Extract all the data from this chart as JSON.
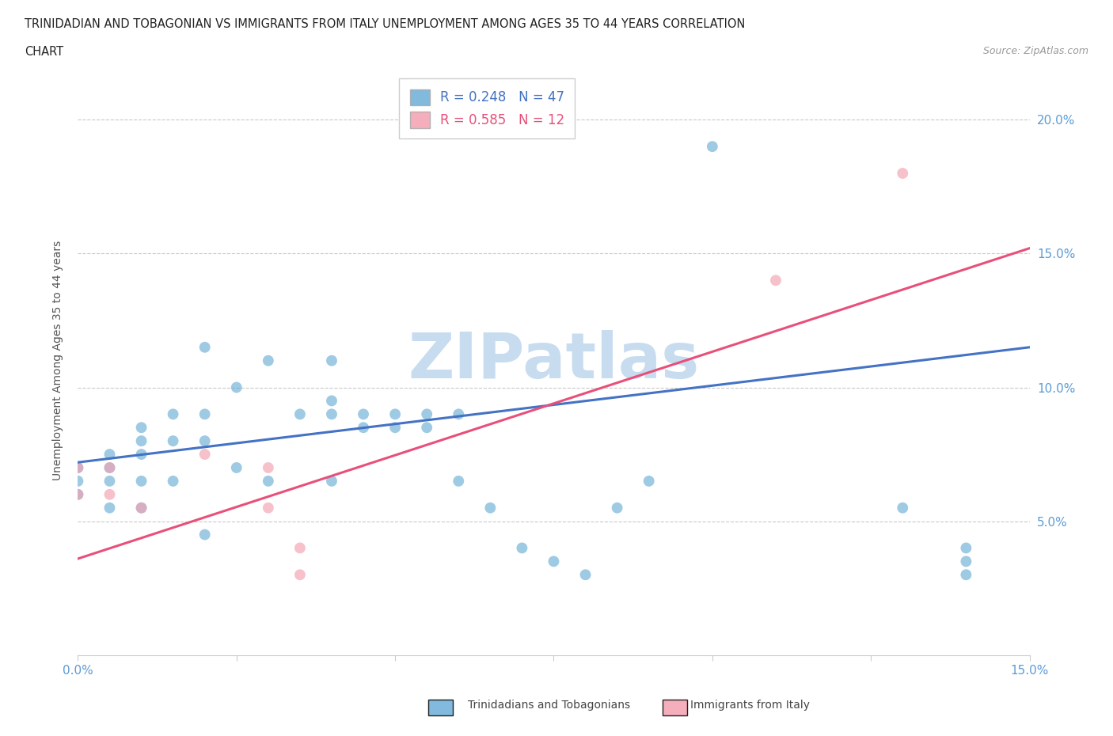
{
  "title_line1": "TRINIDADIAN AND TOBAGONIAN VS IMMIGRANTS FROM ITALY UNEMPLOYMENT AMONG AGES 35 TO 44 YEARS CORRELATION",
  "title_line2": "CHART",
  "source": "Source: ZipAtlas.com",
  "ylabel": "Unemployment Among Ages 35 to 44 years",
  "xlim": [
    0.0,
    0.15
  ],
  "ylim": [
    0.0,
    0.22
  ],
  "yticks": [
    0.05,
    0.1,
    0.15,
    0.2
  ],
  "ytick_labels": [
    "5.0%",
    "10.0%",
    "15.0%",
    "20.0%"
  ],
  "xticks": [
    0.0,
    0.025,
    0.05,
    0.075,
    0.1,
    0.125,
    0.15
  ],
  "xtick_labels": [
    "0.0%",
    "",
    "",
    "",
    "",
    "",
    "15.0%"
  ],
  "legend1_R": "0.248",
  "legend1_N": "47",
  "legend2_R": "0.585",
  "legend2_N": "12",
  "blue_color": "#6BAED6",
  "pink_color": "#F4A0B0",
  "blue_line_color": "#4472C4",
  "pink_line_color": "#E8507A",
  "tick_color": "#5B9BD5",
  "watermark_color": "#C8DCF0",
  "blue_scatter_x": [
    0.0,
    0.0,
    0.0,
    0.005,
    0.005,
    0.005,
    0.005,
    0.01,
    0.01,
    0.01,
    0.01,
    0.01,
    0.015,
    0.015,
    0.015,
    0.02,
    0.02,
    0.02,
    0.02,
    0.025,
    0.025,
    0.03,
    0.03,
    0.035,
    0.04,
    0.04,
    0.04,
    0.04,
    0.045,
    0.045,
    0.05,
    0.05,
    0.055,
    0.055,
    0.06,
    0.06,
    0.065,
    0.07,
    0.075,
    0.08,
    0.085,
    0.09,
    0.1,
    0.13,
    0.14,
    0.14,
    0.14
  ],
  "blue_scatter_y": [
    0.07,
    0.065,
    0.06,
    0.075,
    0.07,
    0.065,
    0.055,
    0.085,
    0.08,
    0.075,
    0.065,
    0.055,
    0.09,
    0.08,
    0.065,
    0.115,
    0.09,
    0.08,
    0.045,
    0.1,
    0.07,
    0.11,
    0.065,
    0.09,
    0.11,
    0.095,
    0.09,
    0.065,
    0.09,
    0.085,
    0.09,
    0.085,
    0.09,
    0.085,
    0.09,
    0.065,
    0.055,
    0.04,
    0.035,
    0.03,
    0.055,
    0.065,
    0.19,
    0.055,
    0.04,
    0.035,
    0.03
  ],
  "pink_scatter_x": [
    0.0,
    0.0,
    0.005,
    0.005,
    0.01,
    0.02,
    0.03,
    0.03,
    0.035,
    0.035,
    0.11,
    0.13
  ],
  "pink_scatter_y": [
    0.07,
    0.06,
    0.07,
    0.06,
    0.055,
    0.075,
    0.07,
    0.055,
    0.04,
    0.03,
    0.14,
    0.18
  ],
  "blue_trend_x": [
    0.0,
    0.15
  ],
  "blue_trend_y": [
    0.072,
    0.115
  ],
  "pink_trend_x": [
    0.0,
    0.15
  ],
  "pink_trend_y": [
    0.036,
    0.152
  ]
}
